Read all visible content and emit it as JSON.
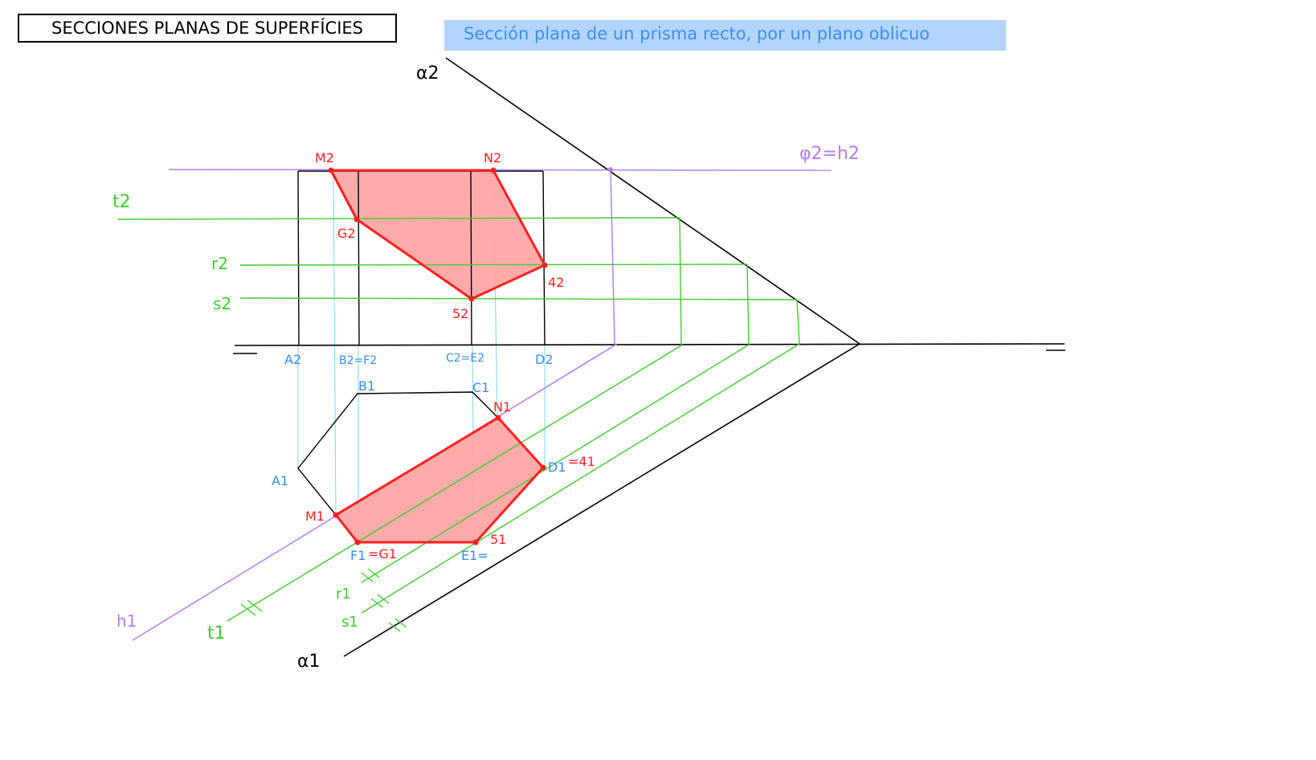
{
  "header": {
    "title": "SECCIONES PLANAS DE SUPERFÍCIES",
    "subtitle": "Sección plana de un prisma recto, por un plano oblicuo"
  },
  "colors": {
    "traces": "#000000",
    "horizontal_plane": "#b57cf5",
    "auxiliary_lines": "#3ccf2a",
    "projection_lines": "#7fd6e8",
    "section": "#ff1f1f",
    "section_fill": "#ff9c9c",
    "vertex_labels": "#2f8ef5"
  },
  "labels": {
    "alpha2": "α2",
    "alpha1": "α1",
    "phi2_h2": "φ2=h2",
    "h1": "h1",
    "t2": "t2",
    "r2": "r2",
    "s2": "s2",
    "t1": "t1",
    "r1": "r1",
    "s1": "s1",
    "M2": "M2",
    "N2": "N2",
    "G2": "G2",
    "P42": "42",
    "P52": "52",
    "A2": "A2",
    "B2F2": "B2=F2",
    "C2E2": "C2=E2",
    "D2": "D2",
    "A1": "A1",
    "B1": "B1",
    "C1": "C1",
    "N1": "N1",
    "M1": "M1",
    "D1": "D1",
    "P41": "=41",
    "F1": "F1",
    "G1": "=G1",
    "E1": "E1=",
    "P51": "51"
  }
}
